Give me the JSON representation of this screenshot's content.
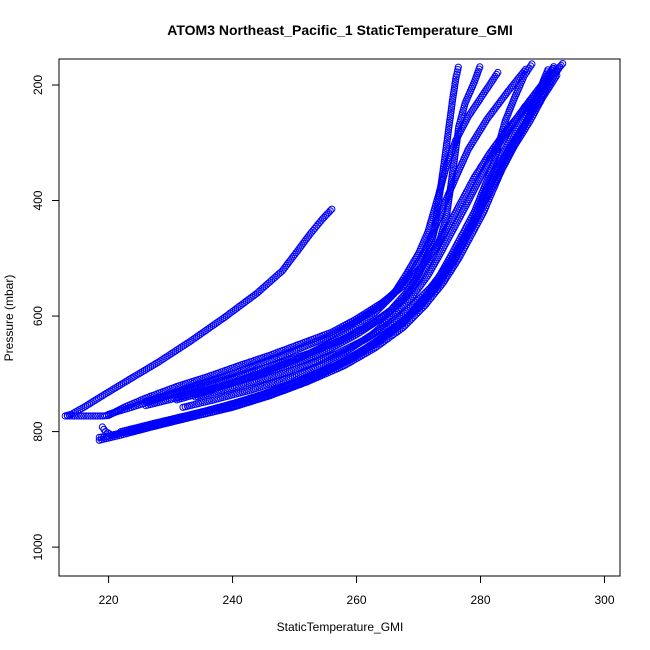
{
  "chart_data": {
    "type": "scatter",
    "title": "ATOM3 Northeast_Pacific_1 StaticTemperature_GMI",
    "xlabel": "StaticTemperature_GMI",
    "ylabel": "Pressure (mbar)",
    "xlim": [
      212,
      302.5
    ],
    "ylim": [
      1050,
      155
    ],
    "y_reversed": true,
    "xticks": [
      220,
      240,
      260,
      280,
      300
    ],
    "yticks": [
      200,
      400,
      600,
      800,
      1000
    ],
    "grid": false,
    "marker_color": "#0000ff",
    "marker": "open-circle",
    "series": [
      {
        "points": [
          [
            256.0,
            415
          ],
          [
            254.5,
            432
          ],
          [
            252.5,
            458
          ],
          [
            250.5,
            487
          ],
          [
            248.0,
            522
          ],
          [
            244.0,
            560
          ],
          [
            239.0,
            600
          ],
          [
            233.0,
            645
          ],
          [
            228.0,
            680
          ],
          [
            223.0,
            712
          ],
          [
            219.0,
            738
          ],
          [
            216.0,
            758
          ],
          [
            214.0,
            770
          ],
          [
            213.0,
            773
          ]
        ]
      },
      {
        "points": [
          [
            213.0,
            773
          ],
          [
            216.0,
            773
          ],
          [
            219.0,
            773
          ],
          [
            220.0,
            772
          ],
          [
            222.5,
            758
          ],
          [
            226.0,
            742
          ],
          [
            231.0,
            722
          ],
          [
            236.0,
            705
          ],
          [
            241.0,
            686
          ],
          [
            246.0,
            668
          ],
          [
            251.0,
            648
          ],
          [
            256.0,
            628
          ],
          [
            260.0,
            605
          ],
          [
            264.0,
            578
          ],
          [
            267.5,
            548
          ],
          [
            270.5,
            515
          ],
          [
            273.0,
            478
          ],
          [
            275.0,
            440
          ],
          [
            277.0,
            400
          ],
          [
            279.0,
            360
          ],
          [
            281.5,
            318
          ],
          [
            284.5,
            274
          ],
          [
            288.0,
            230
          ],
          [
            291.0,
            190
          ],
          [
            293.5,
            160
          ]
        ]
      },
      {
        "points": [
          [
            226.0,
            748
          ],
          [
            230.0,
            735
          ],
          [
            235.0,
            717
          ],
          [
            240.0,
            700
          ],
          [
            245.0,
            680
          ],
          [
            250.0,
            660
          ],
          [
            255.0,
            638
          ],
          [
            259.5,
            612
          ],
          [
            263.5,
            585
          ],
          [
            266.5,
            555
          ],
          [
            269.0,
            522
          ],
          [
            271.0,
            488
          ],
          [
            272.5,
            452
          ],
          [
            274.0,
            410
          ],
          [
            276.0,
            360
          ],
          [
            278.0,
            312
          ],
          [
            281.0,
            260
          ],
          [
            284.5,
            210
          ],
          [
            287.5,
            170
          ]
        ]
      },
      {
        "points": [
          [
            231.0,
            745
          ],
          [
            236.0,
            730
          ],
          [
            241.0,
            712
          ],
          [
            246.0,
            693
          ],
          [
            251.0,
            672
          ],
          [
            255.5,
            648
          ],
          [
            259.5,
            622
          ],
          [
            263.0,
            594
          ],
          [
            266.0,
            562
          ],
          [
            268.0,
            528
          ],
          [
            270.0,
            492
          ],
          [
            271.5,
            455
          ],
          [
            272.5,
            418
          ],
          [
            273.5,
            380
          ],
          [
            274.5,
            340
          ],
          [
            276.0,
            296
          ],
          [
            278.0,
            255
          ],
          [
            280.5,
            215
          ],
          [
            283.0,
            175
          ]
        ]
      },
      {
        "points": [
          [
            232.0,
            758
          ],
          [
            237.0,
            745
          ],
          [
            243.0,
            728
          ],
          [
            249.0,
            708
          ],
          [
            254.0,
            686
          ],
          [
            258.5,
            660
          ],
          [
            262.5,
            632
          ],
          [
            266.0,
            600
          ],
          [
            269.0,
            566
          ],
          [
            271.5,
            530
          ],
          [
            273.5,
            492
          ],
          [
            275.5,
            452
          ],
          [
            277.5,
            412
          ],
          [
            279.5,
            370
          ],
          [
            281.5,
            328
          ],
          [
            284.0,
            285
          ],
          [
            287.0,
            240
          ],
          [
            290.0,
            198
          ],
          [
            292.0,
            165
          ]
        ]
      },
      {
        "points": [
          [
            218.5,
            810
          ],
          [
            220.0,
            808
          ],
          [
            223.0,
            800
          ],
          [
            228.0,
            786
          ],
          [
            233.0,
            772
          ],
          [
            239.0,
            755
          ],
          [
            245.0,
            735
          ],
          [
            251.0,
            712
          ],
          [
            256.5,
            686
          ],
          [
            261.5,
            656
          ],
          [
            266.0,
            622
          ],
          [
            270.0,
            586
          ],
          [
            273.0,
            548
          ],
          [
            275.5,
            508
          ],
          [
            277.5,
            468
          ],
          [
            279.5,
            428
          ],
          [
            281.0,
            390
          ],
          [
            282.5,
            352
          ],
          [
            284.5,
            312
          ],
          [
            287.0,
            270
          ],
          [
            289.5,
            228
          ],
          [
            291.5,
            190
          ],
          [
            293.0,
            165
          ]
        ]
      },
      {
        "points": [
          [
            218.5,
            815
          ],
          [
            222.0,
            806
          ],
          [
            227.0,
            792
          ],
          [
            233.0,
            776
          ],
          [
            240.0,
            758
          ],
          [
            246.0,
            738
          ],
          [
            252.0,
            714
          ],
          [
            258.0,
            686
          ],
          [
            263.0,
            655
          ],
          [
            267.5,
            620
          ],
          [
            271.0,
            582
          ],
          [
            274.0,
            542
          ],
          [
            276.5,
            500
          ],
          [
            278.5,
            460
          ],
          [
            280.5,
            420
          ],
          [
            282.0,
            382
          ],
          [
            283.5,
            345
          ],
          [
            285.5,
            305
          ],
          [
            288.0,
            262
          ],
          [
            290.0,
            222
          ],
          [
            292.5,
            180
          ]
        ]
      },
      {
        "points": [
          [
            219.0,
            792
          ],
          [
            219.5,
            800
          ],
          [
            220.5,
            806
          ],
          [
            225.0,
            796
          ],
          [
            231.0,
            781
          ],
          [
            237.0,
            765
          ],
          [
            243.0,
            747
          ],
          [
            249.0,
            726
          ],
          [
            254.0,
            702
          ],
          [
            259.0,
            675
          ],
          [
            263.5,
            645
          ],
          [
            267.5,
            612
          ],
          [
            270.5,
            576
          ],
          [
            273.0,
            538
          ],
          [
            275.0,
            500
          ],
          [
            277.0,
            460
          ],
          [
            279.0,
            420
          ],
          [
            280.5,
            380
          ],
          [
            282.0,
            340
          ],
          [
            283.0,
            300
          ],
          [
            284.0,
            262
          ],
          [
            285.5,
            222
          ],
          [
            287.0,
            185
          ],
          [
            288.5,
            160
          ]
        ]
      },
      {
        "points": [
          [
            220.0,
            770
          ],
          [
            224.0,
            757
          ],
          [
            229.0,
            740
          ],
          [
            235.0,
            722
          ],
          [
            241.0,
            703
          ],
          [
            247.0,
            684
          ],
          [
            252.5,
            664
          ],
          [
            257.5,
            642
          ],
          [
            262.0,
            617
          ],
          [
            265.5,
            590
          ],
          [
            268.0,
            560
          ],
          [
            270.0,
            528
          ],
          [
            271.5,
            492
          ],
          [
            272.5,
            455
          ],
          [
            273.0,
            418
          ],
          [
            273.5,
            382
          ],
          [
            274.0,
            345
          ],
          [
            274.5,
            305
          ],
          [
            275.0,
            265
          ],
          [
            275.5,
            225
          ],
          [
            276.0,
            190
          ],
          [
            276.5,
            165
          ]
        ]
      },
      {
        "points": [
          [
            226.0,
            755
          ],
          [
            232.0,
            739
          ],
          [
            238.0,
            722
          ],
          [
            244.0,
            703
          ],
          [
            250.0,
            682
          ],
          [
            255.5,
            658
          ],
          [
            260.0,
            632
          ],
          [
            264.0,
            604
          ],
          [
            267.5,
            572
          ],
          [
            270.0,
            538
          ],
          [
            272.0,
            502
          ],
          [
            273.5,
            466
          ],
          [
            274.5,
            428
          ],
          [
            275.0,
            390
          ],
          [
            275.5,
            352
          ],
          [
            276.0,
            312
          ],
          [
            276.5,
            272
          ],
          [
            277.5,
            232
          ],
          [
            279.0,
            195
          ],
          [
            280.0,
            165
          ]
        ]
      },
      {
        "points": [
          [
            222.0,
            800
          ],
          [
            228.0,
            784
          ],
          [
            235.0,
            766
          ],
          [
            242.0,
            746
          ],
          [
            248.0,
            724
          ],
          [
            254.0,
            700
          ],
          [
            259.0,
            672
          ],
          [
            263.5,
            642
          ],
          [
            267.5,
            610
          ],
          [
            270.5,
            574
          ],
          [
            273.5,
            536
          ],
          [
            276.0,
            496
          ],
          [
            278.0,
            456
          ],
          [
            280.0,
            415
          ],
          [
            282.0,
            375
          ],
          [
            284.0,
            335
          ],
          [
            286.0,
            292
          ],
          [
            288.0,
            250
          ],
          [
            289.5,
            210
          ],
          [
            291.0,
            170
          ]
        ]
      },
      {
        "points": [
          [
            234.0,
            740
          ],
          [
            240.0,
            724
          ],
          [
            246.0,
            706
          ],
          [
            252.0,
            686
          ],
          [
            257.0,
            664
          ],
          [
            261.5,
            640
          ],
          [
            265.5,
            612
          ],
          [
            269.0,
            582
          ],
          [
            272.0,
            550
          ],
          [
            274.5,
            515
          ],
          [
            276.5,
            480
          ],
          [
            278.5,
            442
          ],
          [
            280.0,
            404
          ],
          [
            281.5,
            366
          ],
          [
            283.0,
            330
          ],
          [
            285.0,
            290
          ],
          [
            287.5,
            248
          ],
          [
            290.0,
            205
          ],
          [
            292.0,
            168
          ]
        ]
      }
    ]
  }
}
